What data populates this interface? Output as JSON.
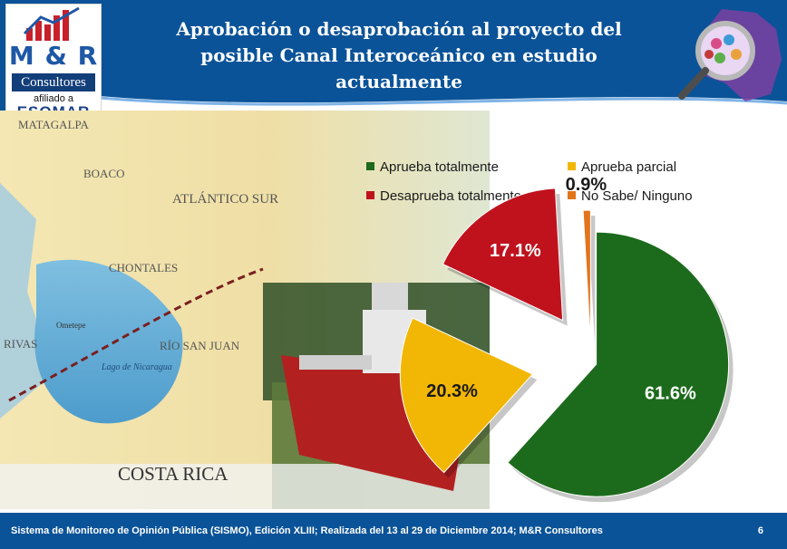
{
  "header": {
    "title_line1": "Aprobación o desaprobación al proyecto del",
    "title_line2": "posible Canal Interoceánico en estudio",
    "title_line3": "actualmente"
  },
  "logo": {
    "brand": "M & R",
    "subtitle": "Consultores",
    "affiliation": "afiliado a",
    "network": "ESOMAR"
  },
  "map": {
    "labels": [
      "MATAGALPA",
      "BOACO",
      "ATLÁNTICO SUR",
      "CHONTALES",
      "RÍO SAN JUAN",
      "RIVAS",
      "Lago de Nicaragua",
      "COSTA RICA",
      "Ometepe"
    ]
  },
  "chart_data": {
    "type": "pie",
    "exploded": true,
    "slices": [
      {
        "label": "Aprueba totalmente",
        "value": 61.6,
        "display": "61.6%",
        "color": "#1c6b1c"
      },
      {
        "label": "Aprueba parcial",
        "value": 20.3,
        "display": "20.3%",
        "color": "#f2b705"
      },
      {
        "label": "Desaprueba totalmente",
        "value": 17.1,
        "display": "17.1%",
        "color": "#c0121d"
      },
      {
        "label": "No Sabe/ Ninguno",
        "value": 0.9,
        "display": "0.9%",
        "color": "#e2741c"
      }
    ],
    "legend_position": "top"
  },
  "footer": {
    "source": "Sistema de Monitoreo de Opinión Pública (SISMO), Edición XLIII; Realizada del 13 al 29 de Diciembre 2014; M&R Consultores",
    "page": "6"
  }
}
